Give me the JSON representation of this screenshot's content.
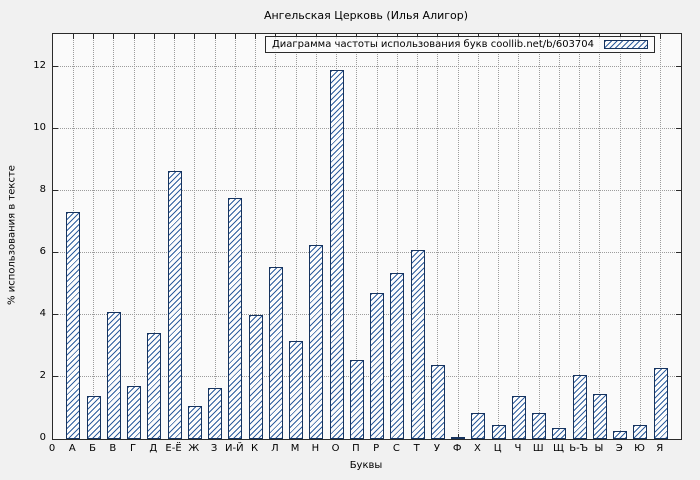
{
  "figure": {
    "title": "Ангельская Церковь (Илья Алигор)"
  },
  "chart_data": {
    "type": "bar",
    "title": "Ангельская Церковь (Илья Алигор)",
    "legend_label": "Диаграмма частоты использования букв coollib.net/b/603704",
    "legend_position": "top-right",
    "xlabel": "Буквы",
    "ylabel": "% использования в тексте",
    "origin_label": "0",
    "categories": [
      "А",
      "Б",
      "В",
      "Г",
      "Д",
      "Е-Ё",
      "Ж",
      "З",
      "И-Й",
      "К",
      "Л",
      "М",
      "Н",
      "О",
      "П",
      "Р",
      "С",
      "Т",
      "У",
      "Ф",
      "Х",
      "Ц",
      "Ч",
      "Ш",
      "Щ",
      "Ь-Ъ",
      "Ы",
      "Э",
      "Ю",
      "Я"
    ],
    "values": [
      7.3,
      1.4,
      4.1,
      1.7,
      3.4,
      8.65,
      1.05,
      1.65,
      7.75,
      4.0,
      5.55,
      3.15,
      6.25,
      11.9,
      2.55,
      4.7,
      5.35,
      6.1,
      2.4,
      0.05,
      0.85,
      0.45,
      1.4,
      0.85,
      0.35,
      2.05,
      1.45,
      0.25,
      0.45,
      2.3
    ],
    "yticks": [
      0,
      2,
      4,
      6,
      8,
      10,
      12
    ],
    "ylim": [
      0,
      13.05
    ],
    "grid": true,
    "colors": {
      "bar_hatch": "#2f5e9e",
      "bar_outline": "#16335e",
      "background": "#f1f1f1",
      "grid": "#9c9c9c"
    }
  }
}
